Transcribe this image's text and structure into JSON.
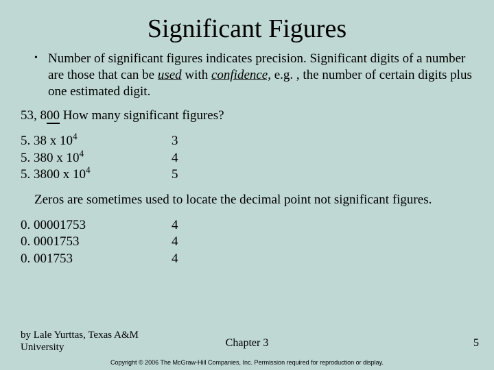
{
  "background_color": "#bfd8d4",
  "text_color": "#000000",
  "font_family": "Times New Roman",
  "title": "Significant Figures",
  "title_fontsize": 38,
  "body_fontsize": 19,
  "bullet": {
    "marker": "•",
    "text_pre": "Number of significant figures indicates precision. Significant digits of a number are those that can be ",
    "used": "used",
    "with": " with ",
    "confidence": "confidence,",
    "text_post": " e.g. , the number of certain digits plus one estimated digit."
  },
  "question_pre": "53, 8",
  "question_underlined": "00",
  "question_post": "   How many significant figures?",
  "group1": {
    "rows": [
      {
        "left_a": "5. 38 x 10",
        "exp": "4",
        "right": "3"
      },
      {
        "left_a": "5. 380 x 10",
        "exp": "4",
        "right": "4"
      },
      {
        "left_a": "5. 3800 x 10",
        "exp": "4",
        "right": "5"
      }
    ]
  },
  "note": "Zeros are sometimes used to locate the decimal point not significant figures.",
  "group2": {
    "rows": [
      {
        "left": "0. 00001753",
        "right": "4"
      },
      {
        "left": "0. 0001753",
        "right": "4"
      },
      {
        "left": "0. 001753",
        "right": "4"
      }
    ]
  },
  "footer": {
    "author": "by Lale Yurttas, Texas A&M University",
    "chapter": "Chapter 3",
    "page": "5"
  },
  "copyright": "Copyright © 2006 The McGraw-Hill Companies, Inc. Permission required for reproduction or display."
}
